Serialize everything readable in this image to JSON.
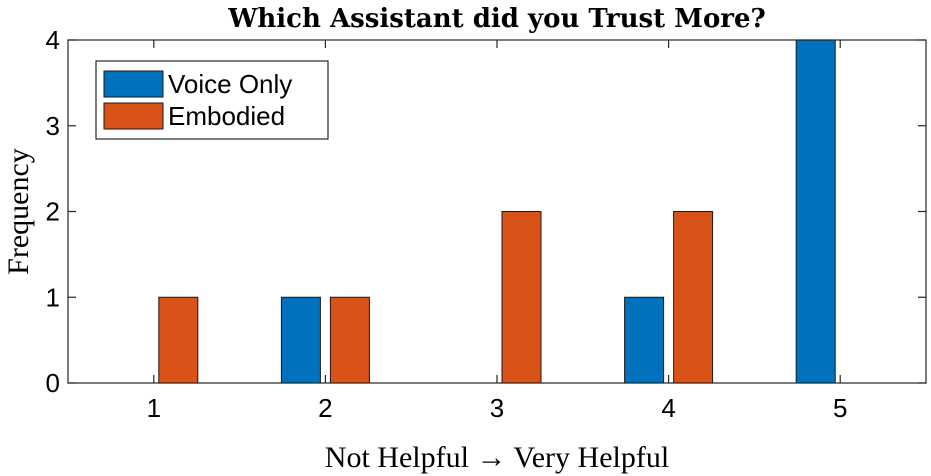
{
  "chart_data": {
    "type": "bar",
    "title": "Which Assistant did you Trust More?",
    "xlabel": "Not  Helpful  →  Very  Helpful",
    "ylabel": "Frequency",
    "categories": [
      "1",
      "2",
      "3",
      "4",
      "5"
    ],
    "series": [
      {
        "name": "Voice Only",
        "color": "#0072BD",
        "values": [
          0,
          1,
          0,
          1,
          4
        ]
      },
      {
        "name": "Embodied",
        "color": "#D95319",
        "values": [
          1,
          1,
          2,
          2,
          0
        ]
      }
    ],
    "ylim": [
      0,
      4
    ],
    "yticks": [
      0,
      1,
      2,
      3,
      4
    ],
    "grid": false,
    "legend_position": "top-left"
  }
}
